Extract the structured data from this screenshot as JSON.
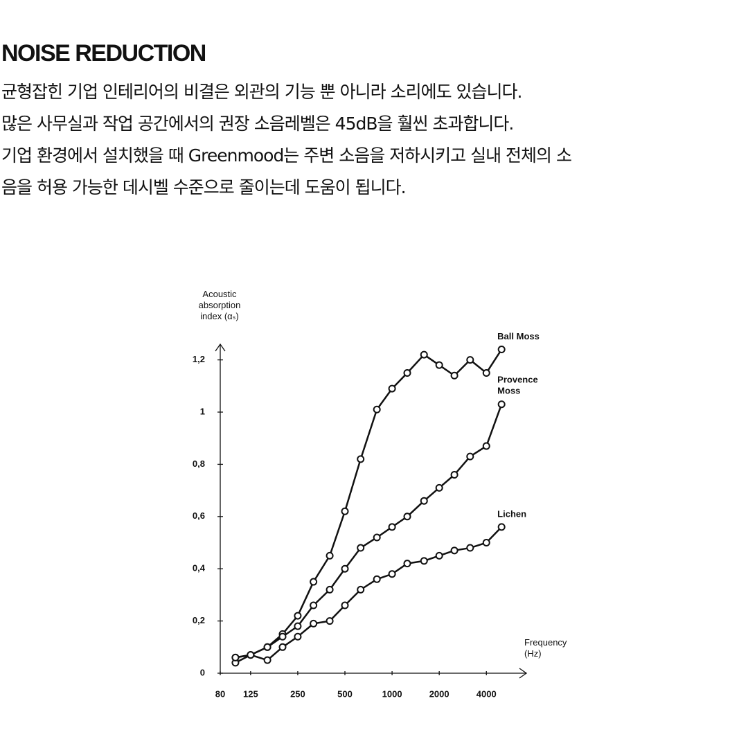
{
  "header": {
    "title": "NOISE REDUCTION"
  },
  "body": {
    "lines": [
      "균형잡힌 기업 인테리어의 비결은  외관의 기능 뿐 아니라 소리에도 있습니다.",
      "많은 사무실과 작업 공간에서의 권장 소음레벨은 45dB을 훨씬 초과합니다.",
      "기업 환경에서 설치했을 때 Greenmood는 주변 소음을 저하시키고 실내 전체의 소",
      "음을 허용 가능한 데시벨 수준으로 줄이는데 도움이 됩니다."
    ]
  },
  "chart_data": {
    "type": "line",
    "y_label": "Acoustic absorption index (αₛ)",
    "x_label": "Frequency (Hz)",
    "x": [
      100,
      125,
      160,
      200,
      250,
      315,
      400,
      500,
      630,
      800,
      1000,
      1250,
      1600,
      2000,
      2500,
      3150,
      4000,
      5000
    ],
    "x_scale": "log",
    "xlim": [
      80,
      7200
    ],
    "xticks": [
      80,
      125,
      250,
      500,
      1000,
      2000,
      4000
    ],
    "ylim": [
      0,
      1.26
    ],
    "yticks": [
      0,
      {
        "value": 0.2,
        "label": "0,2"
      },
      {
        "value": 0.4,
        "label": "0,4"
      },
      {
        "value": 0.6,
        "label": "0,6"
      },
      {
        "value": 0.8,
        "label": "0,8"
      },
      1,
      {
        "value": 1.2,
        "label": "1,2"
      }
    ],
    "series": [
      {
        "name": "Ball Moss",
        "color": "#111111",
        "values": [
          0.04,
          0.07,
          0.1,
          0.15,
          0.22,
          0.35,
          0.45,
          0.62,
          0.82,
          1.01,
          1.09,
          1.15,
          1.22,
          1.18,
          1.14,
          1.2,
          1.15,
          1.24
        ]
      },
      {
        "name": "Provence Moss",
        "color": "#111111",
        "values": [
          0.06,
          0.07,
          0.1,
          0.14,
          0.18,
          0.26,
          0.32,
          0.4,
          0.48,
          0.52,
          0.56,
          0.6,
          0.66,
          0.71,
          0.76,
          0.83,
          0.87,
          1.03
        ]
      },
      {
        "name": "Lichen",
        "color": "#111111",
        "values": [
          0.06,
          0.07,
          0.05,
          0.1,
          0.14,
          0.19,
          0.2,
          0.26,
          0.32,
          0.36,
          0.38,
          0.42,
          0.43,
          0.45,
          0.47,
          0.48,
          0.5,
          0.56
        ]
      }
    ]
  }
}
